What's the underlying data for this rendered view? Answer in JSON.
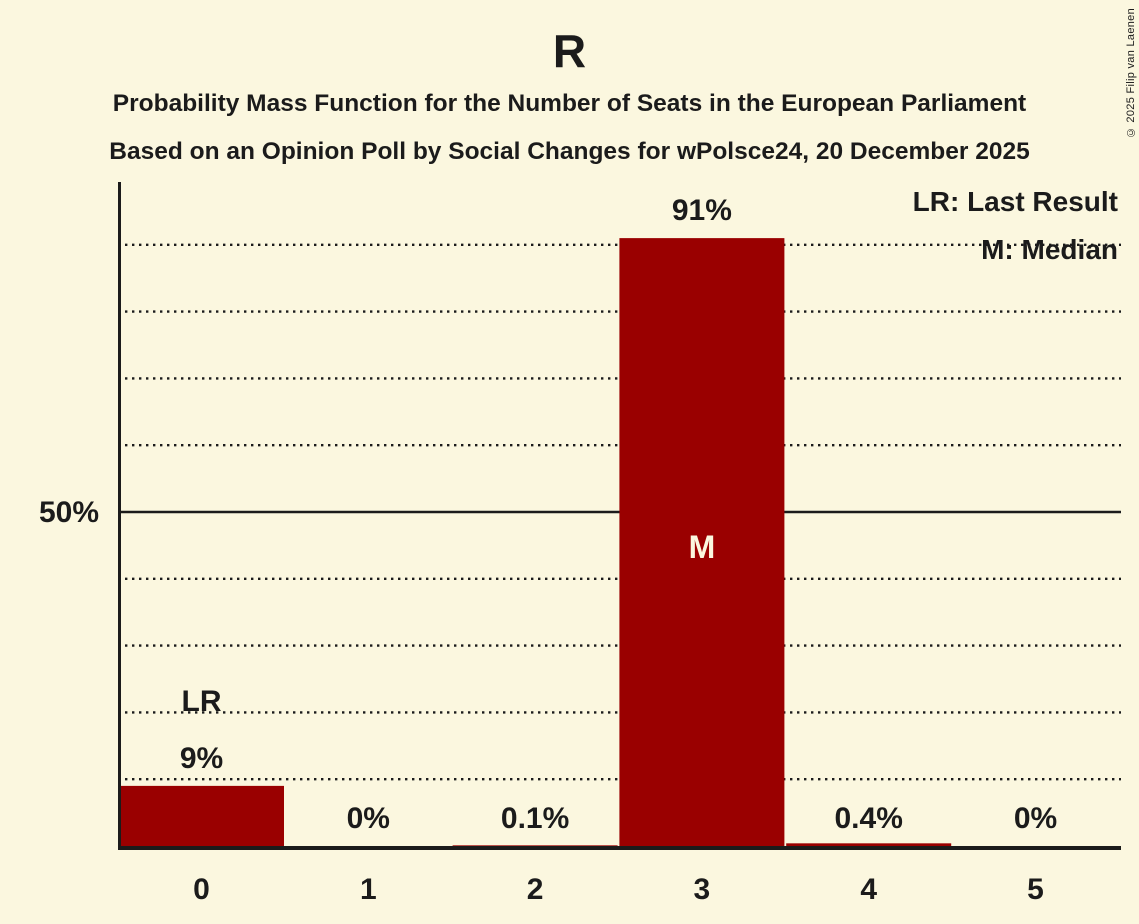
{
  "header": {
    "title": "R",
    "subtitle1": "Probability Mass Function for the Number of Seats in the European Parliament",
    "subtitle2": "Based on an Opinion Poll by Social Changes for wPolsce24, 20 December 2025"
  },
  "copyright": "© 2025 Filip van Laenen",
  "colors": {
    "background": "#FBF7DF",
    "bar": "#9A0000",
    "text": "#1B1B1B",
    "median_text": "#FBF7DF"
  },
  "chart_data": {
    "type": "bar",
    "title": "R",
    "categories": [
      "0",
      "1",
      "2",
      "3",
      "4",
      "5"
    ],
    "values": [
      9,
      0,
      0.1,
      91,
      0.4,
      0
    ],
    "value_labels": [
      "9%",
      "0%",
      "0.1%",
      "91%",
      "0.4%",
      "0%"
    ],
    "xlabel": "",
    "ylabel": "",
    "ylim": [
      0,
      100
    ],
    "grid": "dotted horizontal every 10%",
    "gridlines_pct": [
      10,
      20,
      30,
      40,
      60,
      70,
      80,
      90
    ],
    "solid_line_pct": 50,
    "ytick": {
      "value": 50,
      "label": "50%"
    },
    "legend_position": "top-right",
    "legend": {
      "lr": "LR: Last Result",
      "m": "M: Median"
    },
    "annotations": {
      "last_result": {
        "index": 0,
        "label": "LR"
      },
      "median": {
        "index": 3,
        "label": "M"
      }
    }
  }
}
